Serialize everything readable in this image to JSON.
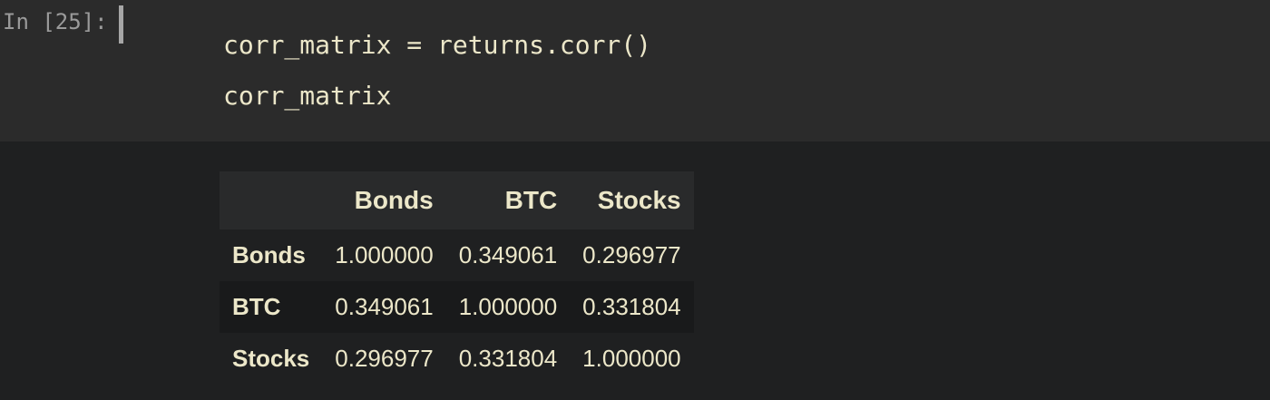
{
  "cell": {
    "prompt": "In [25]:",
    "code_lines": [
      "corr_matrix = returns.corr()",
      "corr_matrix"
    ]
  },
  "output": {
    "columns": [
      "",
      "Bonds",
      "BTC",
      "Stocks"
    ],
    "rows": [
      {
        "index": "Bonds",
        "values": [
          "1.000000",
          "0.349061",
          "0.296977"
        ]
      },
      {
        "index": "BTC",
        "values": [
          "0.349061",
          "1.000000",
          "0.331804"
        ]
      },
      {
        "index": "Stocks",
        "values": [
          "0.296977",
          "0.331804",
          "1.000000"
        ]
      }
    ]
  },
  "colors": {
    "input_background": "#2b2b2b",
    "output_background": "#1f2021",
    "text": "#ece7c9",
    "prompt": "#9a9a9a"
  }
}
